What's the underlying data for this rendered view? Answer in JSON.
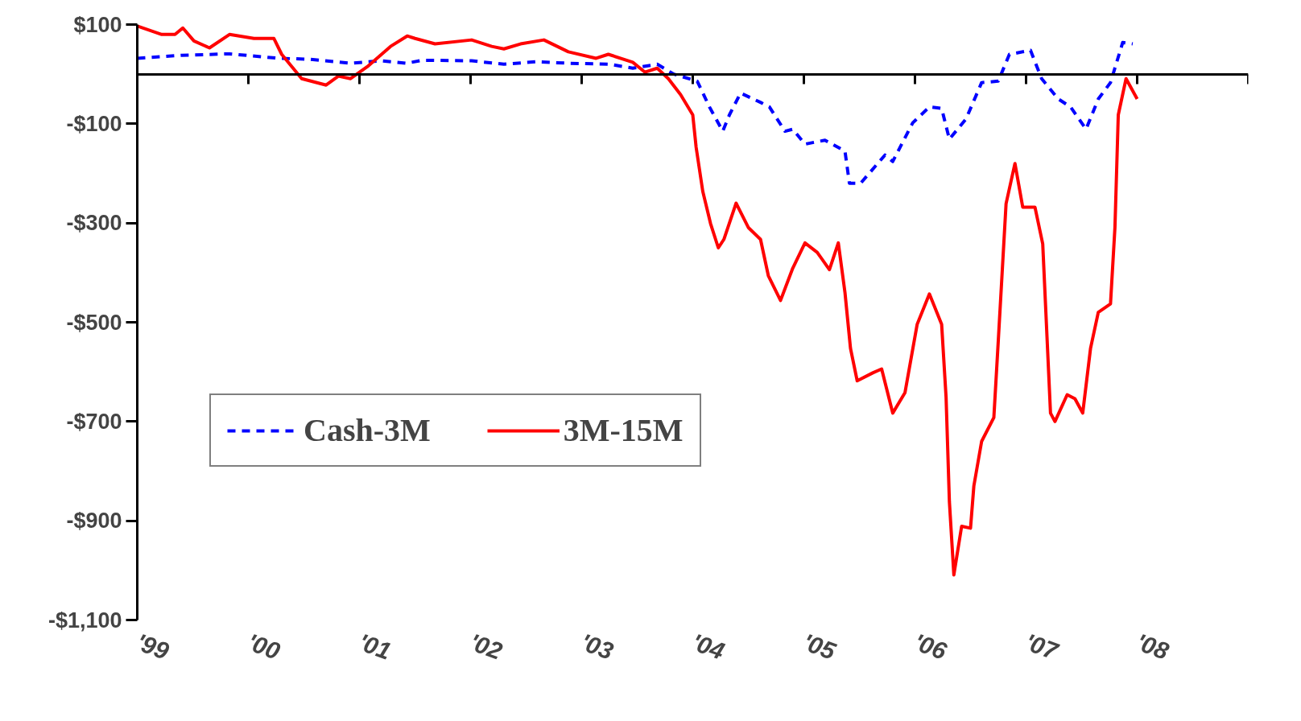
{
  "chart_data": {
    "type": "line",
    "xlim": [
      1999,
      2009
    ],
    "ylim": [
      -1100,
      100
    ],
    "xticks": [
      {
        "value": 1999,
        "label": "'99"
      },
      {
        "value": 2000,
        "label": "'00"
      },
      {
        "value": 2001,
        "label": "'01"
      },
      {
        "value": 2002,
        "label": "'02"
      },
      {
        "value": 2003,
        "label": "'03"
      },
      {
        "value": 2004,
        "label": "'04"
      },
      {
        "value": 2005,
        "label": "'05"
      },
      {
        "value": 2006,
        "label": "'06"
      },
      {
        "value": 2007,
        "label": "'07"
      },
      {
        "value": 2008,
        "label": "'08"
      },
      {
        "value": 2009,
        "label": null
      }
    ],
    "yticks": [
      {
        "value": 100,
        "label": "$100"
      },
      {
        "value": -100,
        "label": "-$100"
      },
      {
        "value": -300,
        "label": "-$300"
      },
      {
        "value": -500,
        "label": "-$500"
      },
      {
        "value": -700,
        "label": "-$700"
      },
      {
        "value": -900,
        "label": "-$900"
      },
      {
        "value": -1100,
        "label": "-$1,100"
      }
    ],
    "grid": false,
    "legend": "left",
    "marker": "none",
    "series": [
      {
        "name": "Cash-3M",
        "color": "#0000ff",
        "line_style": "dashed",
        "x": [
          1999.0,
          1999.4,
          1999.83,
          2000.27,
          2000.56,
          2000.92,
          2001.2,
          2001.42,
          2001.57,
          2002.01,
          2002.3,
          2002.59,
          2002.88,
          2003.25,
          2003.46,
          2003.68,
          2003.83,
          2004.04,
          2004.15,
          2004.27,
          2004.33,
          2004.43,
          2004.62,
          2004.69,
          2004.83,
          2004.9,
          2005.01,
          2005.19,
          2005.37,
          2005.41,
          2005.51,
          2005.73,
          2005.8,
          2005.98,
          2006.13,
          2006.24,
          2006.31,
          2006.46,
          2006.6,
          2006.75,
          2006.85,
          2007.04,
          2007.14,
          2007.29,
          2007.4,
          2007.54,
          2007.65,
          2007.76,
          2007.87,
          2007.96
        ],
        "values": [
          32,
          38,
          41,
          32,
          30,
          22,
          27,
          22,
          28,
          27,
          20,
          25,
          22,
          20,
          12,
          20,
          0,
          -14,
          -66,
          -115,
          -82,
          -38,
          -58,
          -66,
          -115,
          -111,
          -141,
          -133,
          -155,
          -220,
          -220,
          -163,
          -176,
          -98,
          -66,
          -69,
          -131,
          -90,
          -17,
          -14,
          40,
          48,
          -9,
          -50,
          -66,
          -111,
          -50,
          -17,
          64,
          61
        ]
      },
      {
        "name": "3M-15M",
        "color": "#ff0000",
        "line_style": "solid",
        "x": [
          1999.0,
          1999.22,
          1999.34,
          1999.41,
          1999.51,
          1999.65,
          1999.83,
          2000.05,
          2000.23,
          2000.3,
          2000.48,
          2000.7,
          2000.81,
          2000.92,
          2001.07,
          2001.28,
          2001.43,
          2001.5,
          2001.68,
          2002.01,
          2002.19,
          2002.3,
          2002.45,
          2002.66,
          2002.88,
          2003.13,
          2003.24,
          2003.46,
          2003.57,
          2003.68,
          2003.78,
          2003.89,
          2004.0,
          2004.03,
          2004.09,
          2004.16,
          2004.23,
          2004.28,
          2004.39,
          2004.5,
          2004.61,
          2004.68,
          2004.79,
          2004.9,
          2005.01,
          2005.12,
          2005.23,
          2005.31,
          2005.37,
          2005.42,
          2005.48,
          2005.62,
          2005.7,
          2005.8,
          2005.91,
          2006.02,
          2006.13,
          2006.24,
          2006.28,
          2006.31,
          2006.35,
          2006.42,
          2006.5,
          2006.53,
          2006.6,
          2006.71,
          2006.75,
          2006.82,
          2006.9,
          2006.97,
          2007.08,
          2007.15,
          2007.22,
          2007.26,
          2007.37,
          2007.44,
          2007.51,
          2007.58,
          2007.65,
          2007.76,
          2007.8,
          2007.83,
          2007.9,
          2008.0
        ],
        "values": [
          97,
          80,
          80,
          93,
          67,
          53,
          80,
          72,
          72,
          40,
          -9,
          -22,
          -4,
          -9,
          15,
          56,
          77,
          72,
          61,
          69,
          56,
          51,
          61,
          69,
          45,
          32,
          40,
          24,
          4,
          12,
          -9,
          -41,
          -82,
          -147,
          -236,
          -301,
          -350,
          -333,
          -260,
          -309,
          -333,
          -406,
          -456,
          -391,
          -340,
          -359,
          -394,
          -340,
          -440,
          -553,
          -618,
          -602,
          -594,
          -683,
          -642,
          -504,
          -443,
          -504,
          -651,
          -862,
          -1009,
          -911,
          -915,
          -830,
          -740,
          -692,
          -537,
          -261,
          -180,
          -268,
          -268,
          -342,
          -683,
          -700,
          -646,
          -654,
          -683,
          -553,
          -480,
          -463,
          -309,
          -82,
          -9,
          -50
        ]
      }
    ]
  }
}
